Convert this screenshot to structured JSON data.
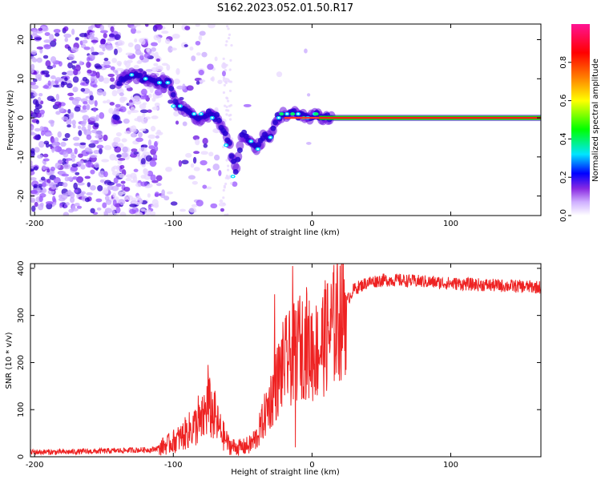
{
  "title": "S162.2023.052.01.50.R17",
  "colors": {
    "snr_line": "#ee2222",
    "band": [
      "#e8d8ff",
      "#c8a8ff",
      "#9a55ff",
      "#6a10e0",
      "#3300cc"
    ]
  },
  "chart_data": [
    {
      "type": "heatmap",
      "xlabel": "Height of straight line (km)",
      "ylabel": "Frequency (Hz)",
      "xlim": [
        -203,
        165
      ],
      "ylim": [
        -25,
        24
      ],
      "xticks": [
        -200,
        -100,
        0,
        100
      ],
      "yticks": [
        -20,
        -10,
        0,
        10,
        20
      ],
      "colorbar": {
        "label": "Normalized spectral amplitude",
        "range": [
          0,
          1
        ],
        "ticks": [
          0.0,
          0.2,
          0.4,
          0.6,
          0.8
        ],
        "colormap": [
          "#ffffff",
          "#d0b0ff",
          "#8a2be2",
          "#0000ff",
          "#00e5ff",
          "#00ff00",
          "#ffff00",
          "#ff8000",
          "#ff0000",
          "#ff1493"
        ]
      },
      "ridge": [
        {
          "x": -140,
          "y": 9
        },
        {
          "x": -130,
          "y": 11
        },
        {
          "x": -120,
          "y": 10
        },
        {
          "x": -110,
          "y": 9
        },
        {
          "x": -103,
          "y": 9
        },
        {
          "x": -97,
          "y": 3
        },
        {
          "x": -90,
          "y": 2
        },
        {
          "x": -82,
          "y": -1
        },
        {
          "x": -75,
          "y": 1
        },
        {
          "x": -68,
          "y": 0
        },
        {
          "x": -60,
          "y": -6
        },
        {
          "x": -55,
          "y": -14
        },
        {
          "x": -50,
          "y": -4
        },
        {
          "x": -45,
          "y": -6
        },
        {
          "x": -40,
          "y": -8
        },
        {
          "x": -35,
          "y": -5
        },
        {
          "x": -30,
          "y": -5
        },
        {
          "x": -25,
          "y": 0
        },
        {
          "x": -20,
          "y": 1
        },
        {
          "x": -12,
          "y": 1
        },
        {
          "x": -5,
          "y": 0
        },
        {
          "x": 2,
          "y": 1
        },
        {
          "x": 8,
          "y": 0
        },
        {
          "x": 15,
          "y": 0
        },
        {
          "x": 165,
          "y": 0
        }
      ]
    },
    {
      "type": "line",
      "xlabel": "Height of straight line (km)",
      "ylabel": "SNR (10 * v/v)",
      "xlim": [
        -203,
        165
      ],
      "ylim": [
        0,
        410
      ],
      "xticks": [
        -200,
        -100,
        0,
        100
      ],
      "yticks": [
        0,
        100,
        200,
        300,
        400
      ],
      "series": [
        {
          "points": [
            {
              "x": -203,
              "y": 10
            },
            {
              "x": -180,
              "y": 10
            },
            {
              "x": -150,
              "y": 12
            },
            {
              "x": -130,
              "y": 14
            },
            {
              "x": -115,
              "y": 15
            },
            {
              "x": -105,
              "y": 25
            },
            {
              "x": -95,
              "y": 40
            },
            {
              "x": -85,
              "y": 65
            },
            {
              "x": -80,
              "y": 70
            },
            {
              "x": -75,
              "y": 110
            },
            {
              "x": -70,
              "y": 80
            },
            {
              "x": -65,
              "y": 50
            },
            {
              "x": -60,
              "y": 25
            },
            {
              "x": -55,
              "y": 20
            },
            {
              "x": -50,
              "y": 20
            },
            {
              "x": -45,
              "y": 25
            },
            {
              "x": -40,
              "y": 40
            },
            {
              "x": -35,
              "y": 80
            },
            {
              "x": -30,
              "y": 120
            },
            {
              "x": -25,
              "y": 160
            },
            {
              "x": -20,
              "y": 200
            },
            {
              "x": -15,
              "y": 210
            },
            {
              "x": -10,
              "y": 230
            },
            {
              "x": -5,
              "y": 240
            },
            {
              "x": 0,
              "y": 220
            },
            {
              "x": 5,
              "y": 230
            },
            {
              "x": 10,
              "y": 255
            },
            {
              "x": 15,
              "y": 275
            },
            {
              "x": 20,
              "y": 300
            },
            {
              "x": 25,
              "y": 330
            },
            {
              "x": 30,
              "y": 355
            },
            {
              "x": 40,
              "y": 370
            },
            {
              "x": 50,
              "y": 375
            },
            {
              "x": 60,
              "y": 375
            },
            {
              "x": 80,
              "y": 372
            },
            {
              "x": 100,
              "y": 368
            },
            {
              "x": 130,
              "y": 364
            },
            {
              "x": 165,
              "y": 360
            }
          ],
          "spikes": [
            {
              "x": -75,
              "y": 195
            },
            {
              "x": -70,
              "y": 140
            },
            {
              "x": -82,
              "y": 130
            },
            {
              "x": -27,
              "y": 345
            },
            {
              "x": -24,
              "y": 240
            },
            {
              "x": -14,
              "y": 405
            },
            {
              "x": -12,
              "y": 20
            },
            {
              "x": -9,
              "y": 330
            },
            {
              "x": -4,
              "y": 360
            },
            {
              "x": 0,
              "y": 305
            },
            {
              "x": 10,
              "y": 355
            }
          ]
        }
      ]
    }
  ]
}
